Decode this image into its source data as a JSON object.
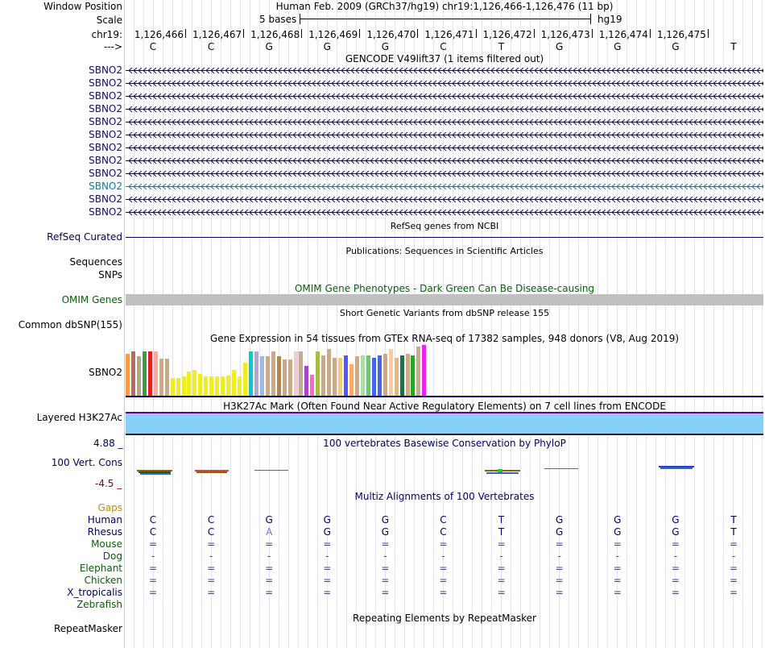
{
  "header": {
    "window_position_label": "Window Position",
    "window_position_value": "Human Feb. 2009 (GRCh37/hg19)   chr19:1,126,466-1,126,476 (11 bp)",
    "scale_label": "Scale",
    "scale_text": "5 bases",
    "assembly": "hg19",
    "chrom_label": "chr19:",
    "strand_label": "--->",
    "positions": [
      "1,126,466",
      "1,126,467",
      "1,126,468",
      "1,126,469",
      "1,126,470",
      "1,126,471",
      "1,126,472",
      "1,126,473",
      "1,126,474",
      "1,126,475"
    ],
    "bases": [
      "C",
      "C",
      "G",
      "G",
      "G",
      "C",
      "T",
      "G",
      "G",
      "G",
      "T"
    ]
  },
  "gencode": {
    "title": "GENCODE V49lift37 (1 items filtered out)",
    "genes": [
      "SBNO2",
      "SBNO2",
      "SBNO2",
      "SBNO2",
      "SBNO2",
      "SBNO2",
      "SBNO2",
      "SBNO2",
      "SBNO2",
      "SBNO2",
      "SBNO2",
      "SBNO2"
    ],
    "highlight_index": 9,
    "color_main": "#0c0c78",
    "color_highlight": "#0e7c9a"
  },
  "refseq": {
    "title": "RefSeq genes from NCBI",
    "label": "RefSeq Curated"
  },
  "publications": {
    "title": "Publications: Sequences in Scientific Articles",
    "label_sequences": "Sequences",
    "label_snps": "SNPs"
  },
  "omim": {
    "title": "OMIM Gene Phenotypes - Dark Green Can Be Disease-causing",
    "label": "OMIM Genes",
    "color": "#006600"
  },
  "dbsnp": {
    "title": "Short Genetic Variants from dbSNP release 155",
    "label": "Common dbSNP(155)"
  },
  "gtex": {
    "title": "Gene Expression in 54 tissues from GTEx RNA-seq of 17382 samples, 948 donors (V8, Aug 2019)",
    "label": "SBNO2",
    "values": [
      0.83,
      0.87,
      0.78,
      0.87,
      0.87,
      0.87,
      0.73,
      0.73,
      0.35,
      0.35,
      0.38,
      0.47,
      0.5,
      0.43,
      0.38,
      0.38,
      0.38,
      0.38,
      0.4,
      0.5,
      0.38,
      0.65,
      0.88,
      0.87,
      0.77,
      0.77,
      0.87,
      0.77,
      0.72,
      0.72,
      0.88,
      0.87,
      0.58,
      0.42,
      0.88,
      0.8,
      0.92,
      0.75,
      0.75,
      0.8,
      0.62,
      0.78,
      0.8,
      0.8,
      0.75,
      0.8,
      0.82,
      0.92,
      0.75,
      0.8,
      0.82,
      0.8,
      0.97,
      1.0
    ],
    "colors": [
      "#ff9944",
      "#bb6666",
      "#aaaa88",
      "#449944",
      "#dd2222",
      "#ffaa99",
      "#ccaa88",
      "#ccaa88",
      "#eeee22",
      "#eeee22",
      "#eeee22",
      "#eeee22",
      "#eeee22",
      "#eeee22",
      "#eeee22",
      "#eeee22",
      "#eeee22",
      "#eeee22",
      "#eeee22",
      "#eeee22",
      "#eeee22",
      "#eeee22",
      "#00cccc",
      "#aaaacc",
      "#99bbee",
      "#ccaa88",
      "#ccaa88",
      "#aa8855",
      "#ccaa88",
      "#ccaa88",
      "#eecccc",
      "#ccaa88",
      "#aa44cc",
      "#ff66cc",
      "#aabb44",
      "#ccaa88",
      "#ccaa88",
      "#ccaa88",
      "#eecc88",
      "#5555ff",
      "#ffaa66",
      "#ccaa88",
      "#aaddaa",
      "#66cc66",
      "#4466ee",
      "#4466ee",
      "#ccaa88",
      "#ffcc99",
      "#ddbb88",
      "#117744",
      "#ccaa88",
      "#22aa22",
      "#ccaa88",
      "#ee22ee"
    ]
  },
  "h3k27ac": {
    "title": "H3K27Ac Mark (Often Found Near Active Regulatory Elements) on 7 cell lines from ENCODE",
    "label": "Layered H3K27Ac",
    "fill": "#86cff8"
  },
  "phylop": {
    "title": "100 vertebrates Basewise Conservation by PhyloP",
    "label": "100 Vert. Cons",
    "max": "4.88 _",
    "min": "-4.5 _"
  },
  "multiz": {
    "title": "Multiz Alignments of 100 Vertebrates",
    "gaps_label": "Gaps",
    "species": [
      {
        "name": "Human",
        "seq": [
          "C",
          "C",
          "G",
          "G",
          "G",
          "C",
          "T",
          "G",
          "G",
          "G",
          "T"
        ],
        "color": "#000066"
      },
      {
        "name": "Rhesus",
        "seq": [
          "C",
          "C",
          "A",
          "G",
          "G",
          "C",
          "T",
          "G",
          "G",
          "G",
          "T"
        ],
        "color": "#000066"
      },
      {
        "name": "Mouse",
        "seq": [
          "=",
          "=",
          "=",
          "=",
          "=",
          "=",
          "=",
          "=",
          "=",
          "=",
          "="
        ],
        "color": "#0c5c0c"
      },
      {
        "name": "Dog",
        "seq": [
          "-",
          "-",
          "-",
          "-",
          "-",
          "-",
          "-",
          "-",
          "-",
          "-",
          "-"
        ],
        "color": "#0c5c0c"
      },
      {
        "name": "Elephant",
        "seq": [
          "=",
          "=",
          "=",
          "=",
          "=",
          "=",
          "=",
          "=",
          "=",
          "=",
          "="
        ],
        "color": "#0c5c0c"
      },
      {
        "name": "Chicken",
        "seq": [
          "=",
          "=",
          "=",
          "=",
          "=",
          "=",
          "=",
          "=",
          "=",
          "=",
          "="
        ],
        "color": "#0c5c0c"
      },
      {
        "name": "X_tropicalis",
        "seq": [
          "=",
          "=",
          "=",
          "=",
          "=",
          "=",
          "=",
          "=",
          "=",
          "=",
          "="
        ],
        "color": "#000066"
      },
      {
        "name": "Zebrafish",
        "seq": [
          "",
          "",
          "",
          "",
          "",
          "",
          "",
          "",
          "",
          "",
          ""
        ],
        "color": "#0c5c0c"
      }
    ]
  },
  "repeatmasker": {
    "title": "Repeating Elements by RepeatMasker",
    "label": "RepeatMasker"
  }
}
